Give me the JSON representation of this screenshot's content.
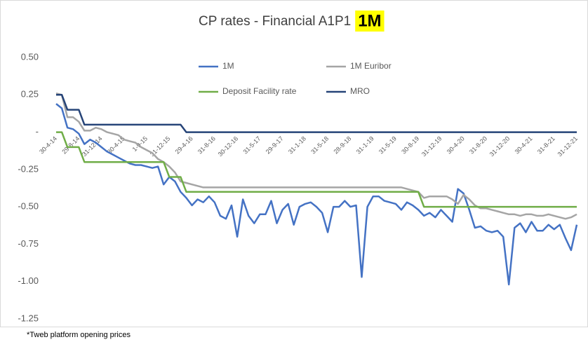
{
  "chart_data": {
    "type": "line",
    "title": "CP rates -  Financial A1P1",
    "title_highlight": "1M",
    "footnote": "*Tweb platform opening prices",
    "categories": [
      "30-4-14",
      null,
      null,
      null,
      "29-8-14",
      null,
      null,
      null,
      "31-12-14",
      null,
      null,
      null,
      "30-4-15",
      null,
      null,
      null,
      "1-9-15",
      null,
      null,
      null,
      "31-12-15",
      null,
      null,
      null,
      "29-4-16",
      null,
      null,
      null,
      "31-8-16",
      null,
      null,
      null,
      "30-12-16",
      null,
      null,
      null,
      "31-5-17",
      null,
      null,
      null,
      "29-9-17",
      null,
      null,
      null,
      "31-1-18",
      null,
      null,
      null,
      "31-5-18",
      null,
      null,
      null,
      "28-9-18",
      null,
      null,
      null,
      "31-1-19",
      null,
      null,
      null,
      "31-5-19",
      null,
      null,
      null,
      "30-8-19",
      null,
      null,
      null,
      "31-12-19",
      null,
      null,
      null,
      "30-4-20",
      null,
      null,
      null,
      "31-8-20",
      null,
      null,
      null,
      "31-12-20",
      null,
      null,
      null,
      "30-4-21",
      null,
      null,
      null,
      "31-8-21",
      null,
      null,
      null,
      "31-12-21"
    ],
    "series": [
      {
        "name": "1M",
        "color": "#4472c4",
        "values": [
          0.19,
          0.16,
          0.03,
          0.02,
          -0.01,
          -0.08,
          -0.05,
          -0.07,
          -0.1,
          -0.13,
          -0.15,
          -0.17,
          -0.19,
          -0.21,
          -0.22,
          -0.22,
          -0.23,
          -0.24,
          -0.23,
          -0.35,
          -0.3,
          -0.33,
          -0.4,
          -0.44,
          -0.49,
          -0.45,
          -0.47,
          -0.43,
          -0.47,
          -0.56,
          -0.58,
          -0.49,
          -0.7,
          -0.45,
          -0.56,
          -0.61,
          -0.55,
          -0.55,
          -0.46,
          -0.61,
          -0.52,
          -0.48,
          -0.62,
          -0.5,
          -0.48,
          -0.47,
          -0.5,
          -0.54,
          -0.67,
          -0.5,
          -0.5,
          -0.46,
          -0.5,
          -0.49,
          -0.97,
          -0.5,
          -0.43,
          -0.43,
          -0.46,
          -0.47,
          -0.48,
          -0.52,
          -0.47,
          -0.49,
          -0.52,
          -0.56,
          -0.54,
          -0.57,
          -0.52,
          -0.56,
          -0.6,
          -0.38,
          -0.41,
          -0.52,
          -0.64,
          -0.63,
          -0.66,
          -0.67,
          -0.66,
          -0.7,
          -1.02,
          -0.64,
          -0.61,
          -0.67,
          -0.6,
          -0.66,
          -0.66,
          -0.62,
          -0.65,
          -0.62,
          -0.71,
          -0.79,
          -0.62
        ]
      },
      {
        "name": "1M Euribor",
        "color": "#a5a5a5",
        "values": [
          0.26,
          0.25,
          0.1,
          0.1,
          0.07,
          0.01,
          0.01,
          0.03,
          0.02,
          0.0,
          -0.01,
          -0.02,
          -0.05,
          -0.06,
          -0.07,
          -0.1,
          -0.12,
          -0.14,
          -0.18,
          -0.2,
          -0.23,
          -0.27,
          -0.33,
          -0.34,
          -0.35,
          -0.36,
          -0.37,
          -0.37,
          -0.37,
          -0.37,
          -0.37,
          -0.37,
          -0.37,
          -0.37,
          -0.37,
          -0.37,
          -0.37,
          -0.37,
          -0.37,
          -0.37,
          -0.37,
          -0.37,
          -0.37,
          -0.37,
          -0.37,
          -0.37,
          -0.37,
          -0.37,
          -0.37,
          -0.37,
          -0.37,
          -0.37,
          -0.37,
          -0.37,
          -0.37,
          -0.37,
          -0.37,
          -0.37,
          -0.37,
          -0.37,
          -0.37,
          -0.37,
          -0.38,
          -0.39,
          -0.4,
          -0.44,
          -0.43,
          -0.43,
          -0.43,
          -0.43,
          -0.45,
          -0.48,
          -0.42,
          -0.45,
          -0.49,
          -0.51,
          -0.51,
          -0.52,
          -0.53,
          -0.54,
          -0.55,
          -0.55,
          -0.56,
          -0.55,
          -0.55,
          -0.56,
          -0.56,
          -0.55,
          -0.56,
          -0.57,
          -0.58,
          -0.57,
          -0.55
        ]
      },
      {
        "name": "Deposit Facility rate",
        "color": "#70ad47",
        "values": [
          0,
          0,
          -0.1,
          -0.1,
          -0.1,
          -0.2,
          -0.2,
          -0.2,
          -0.2,
          -0.2,
          -0.2,
          -0.2,
          -0.2,
          -0.2,
          -0.2,
          -0.2,
          -0.2,
          -0.2,
          -0.2,
          -0.2,
          -0.3,
          -0.3,
          -0.3,
          -0.4,
          -0.4,
          -0.4,
          -0.4,
          -0.4,
          -0.4,
          -0.4,
          -0.4,
          -0.4,
          -0.4,
          -0.4,
          -0.4,
          -0.4,
          -0.4,
          -0.4,
          -0.4,
          -0.4,
          -0.4,
          -0.4,
          -0.4,
          -0.4,
          -0.4,
          -0.4,
          -0.4,
          -0.4,
          -0.4,
          -0.4,
          -0.4,
          -0.4,
          -0.4,
          -0.4,
          -0.4,
          -0.4,
          -0.4,
          -0.4,
          -0.4,
          -0.4,
          -0.4,
          -0.4,
          -0.4,
          -0.4,
          -0.4,
          -0.5,
          -0.5,
          -0.5,
          -0.5,
          -0.5,
          -0.5,
          -0.5,
          -0.5,
          -0.5,
          -0.5,
          -0.5,
          -0.5,
          -0.5,
          -0.5,
          -0.5,
          -0.5,
          -0.5,
          -0.5,
          -0.5,
          -0.5,
          -0.5,
          -0.5,
          -0.5,
          -0.5,
          -0.5,
          -0.5,
          -0.5,
          -0.5
        ]
      },
      {
        "name": "MRO",
        "color": "#264478",
        "values": [
          0.25,
          0.25,
          0.15,
          0.15,
          0.15,
          0.05,
          0.05,
          0.05,
          0.05,
          0.05,
          0.05,
          0.05,
          0.05,
          0.05,
          0.05,
          0.05,
          0.05,
          0.05,
          0.05,
          0.05,
          0.05,
          0.05,
          0.05,
          0,
          0,
          0,
          0,
          0,
          0,
          0,
          0,
          0,
          0,
          0,
          0,
          0,
          0,
          0,
          0,
          0,
          0,
          0,
          0,
          0,
          0,
          0,
          0,
          0,
          0,
          0,
          0,
          0,
          0,
          0,
          0,
          0,
          0,
          0,
          0,
          0,
          0,
          0,
          0,
          0,
          0,
          0,
          0,
          0,
          0,
          0,
          0,
          0,
          0,
          0,
          0,
          0,
          0,
          0,
          0,
          0,
          0,
          0,
          0,
          0,
          0,
          0,
          0,
          0,
          0,
          0,
          0,
          0,
          0
        ]
      }
    ],
    "ylim": [
      -1.25,
      0.5
    ],
    "yticks": [
      {
        "value": 0.5,
        "label": "0.50"
      },
      0.25,
      {
        "value": 0,
        "label": "-"
      },
      -0.25,
      {
        "value": -0.5,
        "label": "-0.50"
      },
      -0.75,
      {
        "value": -1,
        "label": "-1.00"
      },
      -1.25
    ]
  }
}
